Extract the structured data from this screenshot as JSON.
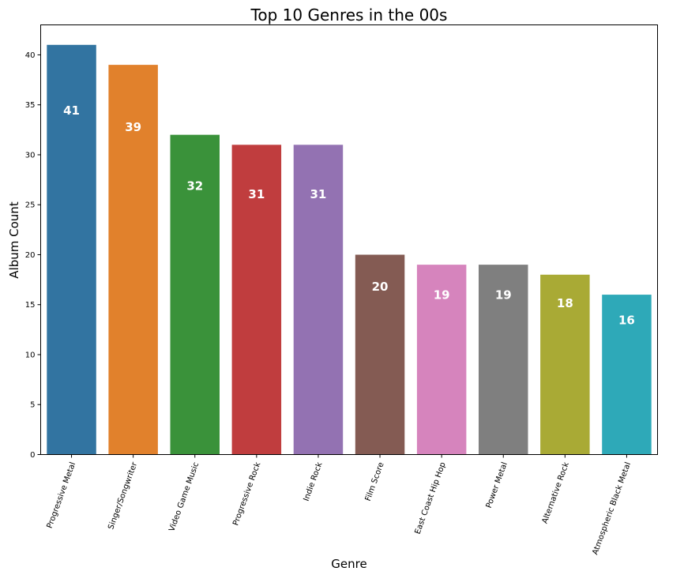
{
  "chart_data": {
    "type": "bar",
    "title": "Top 10 Genres in the 00s",
    "xlabel": "Genre",
    "ylabel": "Album Count",
    "categories": [
      "Progressive Metal",
      "Singer/Songwriter",
      "Video Game Music",
      "Progressive Rock",
      "Indie Rock",
      "Film Score",
      "East Coast Hip Hop",
      "Power Metal",
      "Alternative Rock",
      "Atmospheric Black Metal"
    ],
    "values": [
      41,
      39,
      32,
      31,
      31,
      20,
      19,
      19,
      18,
      16
    ],
    "data_labels": [
      "41",
      "39",
      "32",
      "31",
      "31",
      "20",
      "19",
      "19",
      "18",
      "16"
    ],
    "colors": [
      "#3274a1",
      "#e1812c",
      "#3a923a",
      "#c03d3e",
      "#9372b2",
      "#845b53",
      "#d684bd",
      "#7f7f7f",
      "#a9aa35",
      "#2ea9b8"
    ],
    "ylim": [
      0,
      43
    ],
    "yticks": [
      0,
      5,
      10,
      15,
      20,
      25,
      30,
      35,
      40
    ],
    "ytick_labels": [
      "0",
      "5",
      "10",
      "15",
      "20",
      "25",
      "30",
      "35",
      "40"
    ],
    "grid": false,
    "legend": "none"
  }
}
